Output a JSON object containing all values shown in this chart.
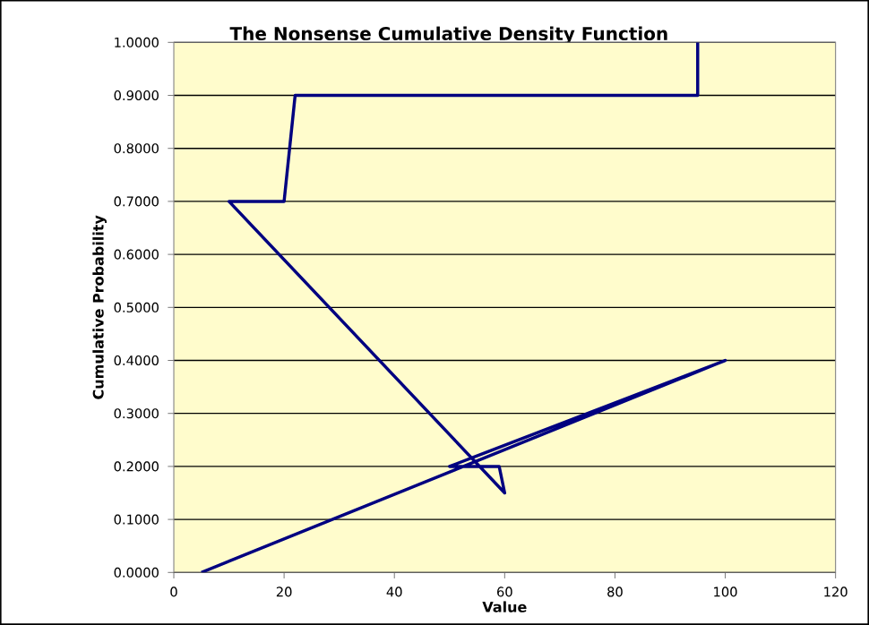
{
  "chart_data": {
    "type": "line",
    "title": "The Nonsense Cumulative Density Function",
    "xlabel": "Value",
    "ylabel": "Cumulative Probability",
    "series": [
      {
        "color": "#000080",
        "x": [
          5,
          100,
          50,
          59,
          60,
          10,
          20,
          22,
          95,
          95
        ],
        "values": [
          0,
          0.4,
          0.2,
          0.2,
          0.15,
          0.7,
          0.7,
          0.9,
          0.9,
          1.0
        ]
      }
    ],
    "xlim": [
      0,
      120
    ],
    "xticks": [
      0,
      20,
      40,
      60,
      80,
      100,
      120
    ],
    "ylim": [
      0,
      1
    ],
    "yticks": [
      {
        "value": 0,
        "label": "0.0000"
      },
      {
        "value": 0.1,
        "label": "0.1000"
      },
      {
        "value": 0.2,
        "label": "0.2000"
      },
      {
        "value": 0.3,
        "label": "0.3000"
      },
      {
        "value": 0.4,
        "label": "0.4000"
      },
      {
        "value": 0.5,
        "label": "0.5000"
      },
      {
        "value": 0.6,
        "label": "0.6000"
      },
      {
        "value": 0.7,
        "label": "0.7000"
      },
      {
        "value": 0.8,
        "label": "0.8000"
      },
      {
        "value": 0.9,
        "label": "0.9000"
      },
      {
        "value": 1.0,
        "label": "1.0000"
      }
    ],
    "grid": "y",
    "marker": "none",
    "line_style": "solid"
  }
}
